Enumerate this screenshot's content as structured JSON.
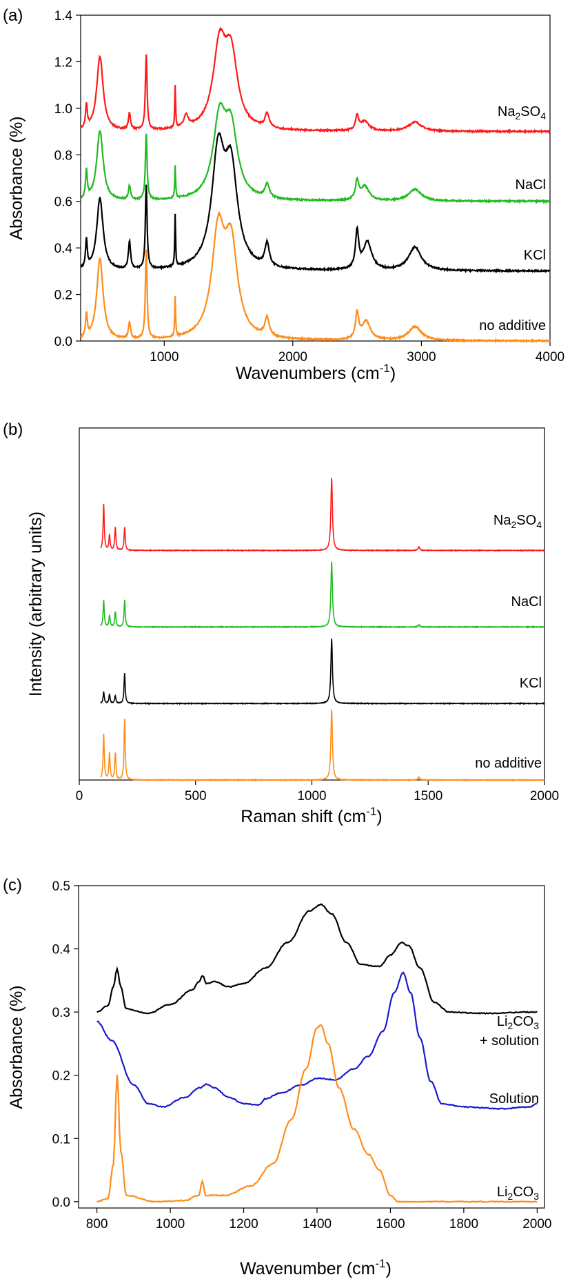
{
  "colors": {
    "red": "#ff1a1a",
    "green": "#22bb22",
    "black": "#000000",
    "orange": "#ff8c1a",
    "blue": "#1a1acc"
  },
  "chart_data": [
    {
      "panel_label": "(a)",
      "type": "line",
      "xlabel": "Wavenumbers (cm",
      "xlabel_sup": "-1",
      "xlabel_suffix": ")",
      "ylabel": "Absorbance (%)",
      "xlim": [
        350,
        4000
      ],
      "ylim": [
        0.0,
        1.4
      ],
      "xticks": [
        "1000",
        "2000",
        "3000",
        "4000"
      ],
      "yticks": [
        "0.0",
        "0.2",
        "0.4",
        "0.6",
        "0.8",
        "1.0",
        "1.2",
        "1.4"
      ],
      "grid": false,
      "series": [
        {
          "name": "Na2SO4",
          "label_main": "Na",
          "label_sub1": "2",
          "label_mid": "SO",
          "label_sub2": "4",
          "color": "red",
          "baseline": 0.9,
          "peaks": [
            [
              395,
              0.1,
              8
            ],
            [
              500,
              0.32,
              30
            ],
            [
              730,
              0.07,
              10
            ],
            [
              860,
              0.32,
              8
            ],
            [
              1085,
              0.18,
              4
            ],
            [
              1170,
              0.05,
              20
            ],
            [
              1430,
              0.34,
              60
            ],
            [
              1520,
              0.3,
              60
            ],
            [
              1800,
              0.06,
              20
            ],
            [
              2500,
              0.06,
              15
            ],
            [
              2560,
              0.04,
              40
            ],
            [
              2950,
              0.04,
              60
            ]
          ]
        },
        {
          "name": "NaCl",
          "color": "green",
          "baseline": 0.6,
          "peaks": [
            [
              395,
              0.12,
              8
            ],
            [
              500,
              0.3,
              30
            ],
            [
              730,
              0.06,
              10
            ],
            [
              860,
              0.28,
              8
            ],
            [
              1085,
              0.14,
              4
            ],
            [
              1430,
              0.33,
              60
            ],
            [
              1520,
              0.28,
              60
            ],
            [
              1800,
              0.06,
              20
            ],
            [
              2500,
              0.08,
              15
            ],
            [
              2560,
              0.06,
              40
            ],
            [
              2950,
              0.05,
              60
            ]
          ]
        },
        {
          "name": "KCl",
          "color": "black",
          "baseline": 0.3,
          "peaks": [
            [
              395,
              0.12,
              8
            ],
            [
              500,
              0.31,
              30
            ],
            [
              730,
              0.12,
              10
            ],
            [
              860,
              0.36,
              8
            ],
            [
              1085,
              0.22,
              4
            ],
            [
              1420,
              0.48,
              60
            ],
            [
              1520,
              0.4,
              60
            ],
            [
              1800,
              0.1,
              20
            ],
            [
              2500,
              0.16,
              15
            ],
            [
              2580,
              0.12,
              40
            ],
            [
              2950,
              0.1,
              60
            ]
          ]
        },
        {
          "name": "no additive",
          "color": "orange",
          "baseline": 0.0,
          "peaks": [
            [
              395,
              0.1,
              8
            ],
            [
              500,
              0.35,
              30
            ],
            [
              730,
              0.07,
              10
            ],
            [
              860,
              0.38,
              8
            ],
            [
              1085,
              0.17,
              4
            ],
            [
              1420,
              0.44,
              60
            ],
            [
              1520,
              0.38,
              60
            ],
            [
              1800,
              0.08,
              20
            ],
            [
              2500,
              0.11,
              15
            ],
            [
              2570,
              0.08,
              40
            ],
            [
              2950,
              0.06,
              60
            ]
          ]
        }
      ]
    },
    {
      "panel_label": "(b)",
      "type": "line",
      "xlabel": "Raman shift (cm",
      "xlabel_sup": "-1",
      "xlabel_suffix": ")",
      "ylabel": "Intensity (arbitrary units)",
      "xlim": [
        0,
        2000
      ],
      "ylim": [
        0,
        4.6
      ],
      "xticks": [
        "0",
        "500",
        "1000",
        "1500",
        "2000"
      ],
      "grid": false,
      "series": [
        {
          "name": "Na2SO4",
          "label_main": "Na",
          "label_sub1": "2",
          "label_mid": "SO",
          "label_sub2": "4",
          "color": "red",
          "baseline": 3.0,
          "peaks": [
            [
              105,
              0.6,
              3
            ],
            [
              130,
              0.2,
              3
            ],
            [
              155,
              0.3,
              3
            ],
            [
              195,
              0.3,
              3
            ],
            [
              1085,
              0.95,
              4
            ],
            [
              1460,
              0.05,
              4
            ]
          ]
        },
        {
          "name": "NaCl",
          "color": "green",
          "baseline": 2.0,
          "peaks": [
            [
              105,
              0.35,
              3
            ],
            [
              130,
              0.15,
              3
            ],
            [
              155,
              0.2,
              3
            ],
            [
              195,
              0.35,
              3
            ],
            [
              1085,
              0.85,
              4
            ],
            [
              1460,
              0.03,
              4
            ]
          ]
        },
        {
          "name": "KCl",
          "color": "black",
          "baseline": 1.0,
          "peaks": [
            [
              105,
              0.15,
              3
            ],
            [
              130,
              0.12,
              3
            ],
            [
              155,
              0.1,
              3
            ],
            [
              195,
              0.4,
              3
            ],
            [
              1085,
              0.85,
              4
            ]
          ]
        },
        {
          "name": "no additive",
          "color": "orange",
          "baseline": 0.0,
          "peaks": [
            [
              105,
              0.6,
              3
            ],
            [
              130,
              0.35,
              3
            ],
            [
              155,
              0.35,
              3
            ],
            [
              195,
              0.8,
              3
            ],
            [
              1085,
              0.92,
              4
            ],
            [
              1460,
              0.04,
              4
            ]
          ]
        }
      ]
    },
    {
      "panel_label": "(c)",
      "type": "line",
      "xlabel": "Wavenumber (cm",
      "xlabel_sup": "-1",
      "xlabel_suffix": ")",
      "ylabel": "Absorbance (%)",
      "xlim": [
        750,
        2020
      ],
      "ylim": [
        -0.01,
        0.5
      ],
      "xticks": [
        "800",
        "1000",
        "1200",
        "1400",
        "1600",
        "1800",
        "2000"
      ],
      "yticks": [
        "0.0",
        "0.1",
        "0.2",
        "0.3",
        "0.4",
        "0.5"
      ],
      "grid": false,
      "series": [
        {
          "name": "Li2CO3 + solution",
          "label_main": "Li",
          "label_sub1": "2",
          "label_mid": "CO",
          "label_sub2": "3",
          "label_line2": "+ solution",
          "color": "black",
          "points": [
            [
              800,
              0.3
            ],
            [
              830,
              0.31
            ],
            [
              845,
              0.34
            ],
            [
              855,
              0.368
            ],
            [
              865,
              0.34
            ],
            [
              880,
              0.305
            ],
            [
              940,
              0.298
            ],
            [
              1000,
              0.312
            ],
            [
              1060,
              0.335
            ],
            [
              1078,
              0.348
            ],
            [
              1088,
              0.358
            ],
            [
              1098,
              0.345
            ],
            [
              1120,
              0.348
            ],
            [
              1160,
              0.34
            ],
            [
              1200,
              0.345
            ],
            [
              1260,
              0.37
            ],
            [
              1320,
              0.41
            ],
            [
              1380,
              0.46
            ],
            [
              1410,
              0.47
            ],
            [
              1440,
              0.455
            ],
            [
              1480,
              0.41
            ],
            [
              1520,
              0.375
            ],
            [
              1570,
              0.372
            ],
            [
              1600,
              0.39
            ],
            [
              1630,
              0.41
            ],
            [
              1650,
              0.405
            ],
            [
              1680,
              0.37
            ],
            [
              1720,
              0.315
            ],
            [
              1760,
              0.3
            ],
            [
              1850,
              0.298
            ],
            [
              2000,
              0.3
            ]
          ]
        },
        {
          "name": "Solution",
          "color": "blue",
          "points": [
            [
              800,
              0.285
            ],
            [
              840,
              0.255
            ],
            [
              900,
              0.185
            ],
            [
              940,
              0.155
            ],
            [
              980,
              0.15
            ],
            [
              1040,
              0.165
            ],
            [
              1080,
              0.18
            ],
            [
              1100,
              0.186
            ],
            [
              1120,
              0.18
            ],
            [
              1160,
              0.165
            ],
            [
              1200,
              0.155
            ],
            [
              1240,
              0.153
            ],
            [
              1260,
              0.163
            ],
            [
              1300,
              0.172
            ],
            [
              1360,
              0.185
            ],
            [
              1400,
              0.195
            ],
            [
              1450,
              0.193
            ],
            [
              1500,
              0.21
            ],
            [
              1540,
              0.23
            ],
            [
              1580,
              0.27
            ],
            [
              1610,
              0.33
            ],
            [
              1635,
              0.362
            ],
            [
              1655,
              0.33
            ],
            [
              1680,
              0.26
            ],
            [
              1710,
              0.19
            ],
            [
              1740,
              0.155
            ],
            [
              1800,
              0.15
            ],
            [
              1900,
              0.147
            ],
            [
              1980,
              0.15
            ],
            [
              2000,
              0.155
            ]
          ]
        },
        {
          "name": "Li2CO3",
          "label_main": "Li",
          "label_sub1": "2",
          "label_mid": "CO",
          "label_sub2": "3",
          "color": "orange",
          "points": [
            [
              800,
              0.0
            ],
            [
              830,
              0.005
            ],
            [
              845,
              0.06
            ],
            [
              855,
              0.2
            ],
            [
              865,
              0.08
            ],
            [
              880,
              0.01
            ],
            [
              960,
              0.0
            ],
            [
              1040,
              0.002
            ],
            [
              1078,
              0.01
            ],
            [
              1087,
              0.033
            ],
            [
              1096,
              0.01
            ],
            [
              1150,
              0.01
            ],
            [
              1220,
              0.025
            ],
            [
              1280,
              0.06
            ],
            [
              1330,
              0.13
            ],
            [
              1370,
              0.21
            ],
            [
              1400,
              0.275
            ],
            [
              1410,
              0.28
            ],
            [
              1430,
              0.25
            ],
            [
              1460,
              0.18
            ],
            [
              1500,
              0.115
            ],
            [
              1540,
              0.075
            ],
            [
              1570,
              0.05
            ],
            [
              1600,
              0.01
            ],
            [
              1620,
              0.0
            ],
            [
              2000,
              0.0
            ]
          ]
        }
      ]
    }
  ]
}
